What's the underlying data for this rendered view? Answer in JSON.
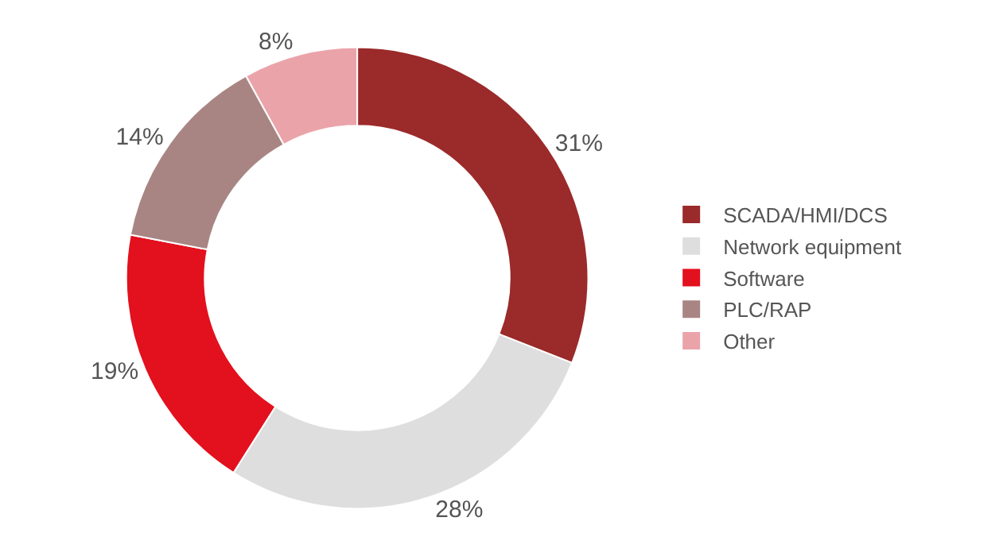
{
  "chart_data": {
    "type": "donut",
    "categories": [
      "SCADA/HMI/DCS",
      "Network equipment",
      "Software",
      "PLC/RAP",
      "Other"
    ],
    "values": [
      31,
      28,
      19,
      14,
      8
    ],
    "value_labels": [
      "31%",
      "28%",
      "19%",
      "14%",
      "8%"
    ],
    "colors": [
      "#9b2a2a",
      "#dedede",
      "#e3101e",
      "#a88583",
      "#eba3aa"
    ],
    "legend": "right"
  }
}
